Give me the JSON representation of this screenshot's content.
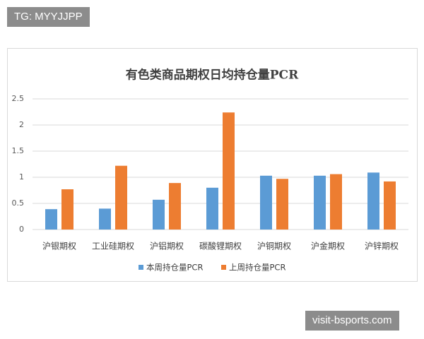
{
  "watermark_top": "TG: MYYJJPP",
  "watermark_bottom": "visit-bsports.com",
  "chart_data": {
    "type": "bar",
    "title": "有色类商品期权日均持仓量PCR",
    "categories": [
      "沪银期权",
      "工业硅期权",
      "沪铝期权",
      "碳酸锂期权",
      "沪铜期权",
      "沪金期权",
      "沪锌期权"
    ],
    "series": [
      {
        "name": "本周持仓量PCR",
        "color": "#5b9bd5",
        "values": [
          0.39,
          0.4,
          0.57,
          0.8,
          1.03,
          1.03,
          1.09
        ]
      },
      {
        "name": "上周持仓量PCR",
        "color": "#ed7d31",
        "values": [
          0.77,
          1.22,
          0.89,
          2.24,
          0.97,
          1.06,
          0.92
        ]
      }
    ],
    "ylim": [
      0,
      2.5
    ],
    "yticks": [
      0,
      0.5,
      1,
      1.5,
      2,
      2.5
    ],
    "grid": true,
    "legend": "bottom"
  }
}
